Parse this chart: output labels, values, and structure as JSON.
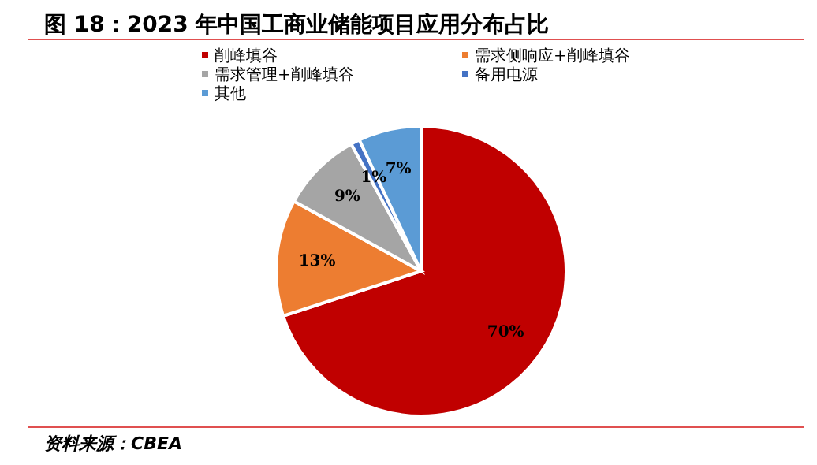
{
  "chart_data": {
    "type": "pie",
    "title": "图 18：2023 年中国工商业储能项目应用分布占比",
    "categories": [
      "削峰填谷",
      "需求侧响应+削峰填谷",
      "需求管理+削峰填谷",
      "备用电源",
      "其他"
    ],
    "values": [
      70,
      13,
      9,
      1,
      7
    ],
    "colors": [
      "#c00000",
      "#ed7d31",
      "#a5a5a5",
      "#4472c4",
      "#5b9bd5"
    ],
    "value_labels": [
      "70%",
      "13%",
      "9%",
      "1%",
      "7%"
    ],
    "legend": "top",
    "annotations": [
      "资料来源：CBEA"
    ]
  }
}
